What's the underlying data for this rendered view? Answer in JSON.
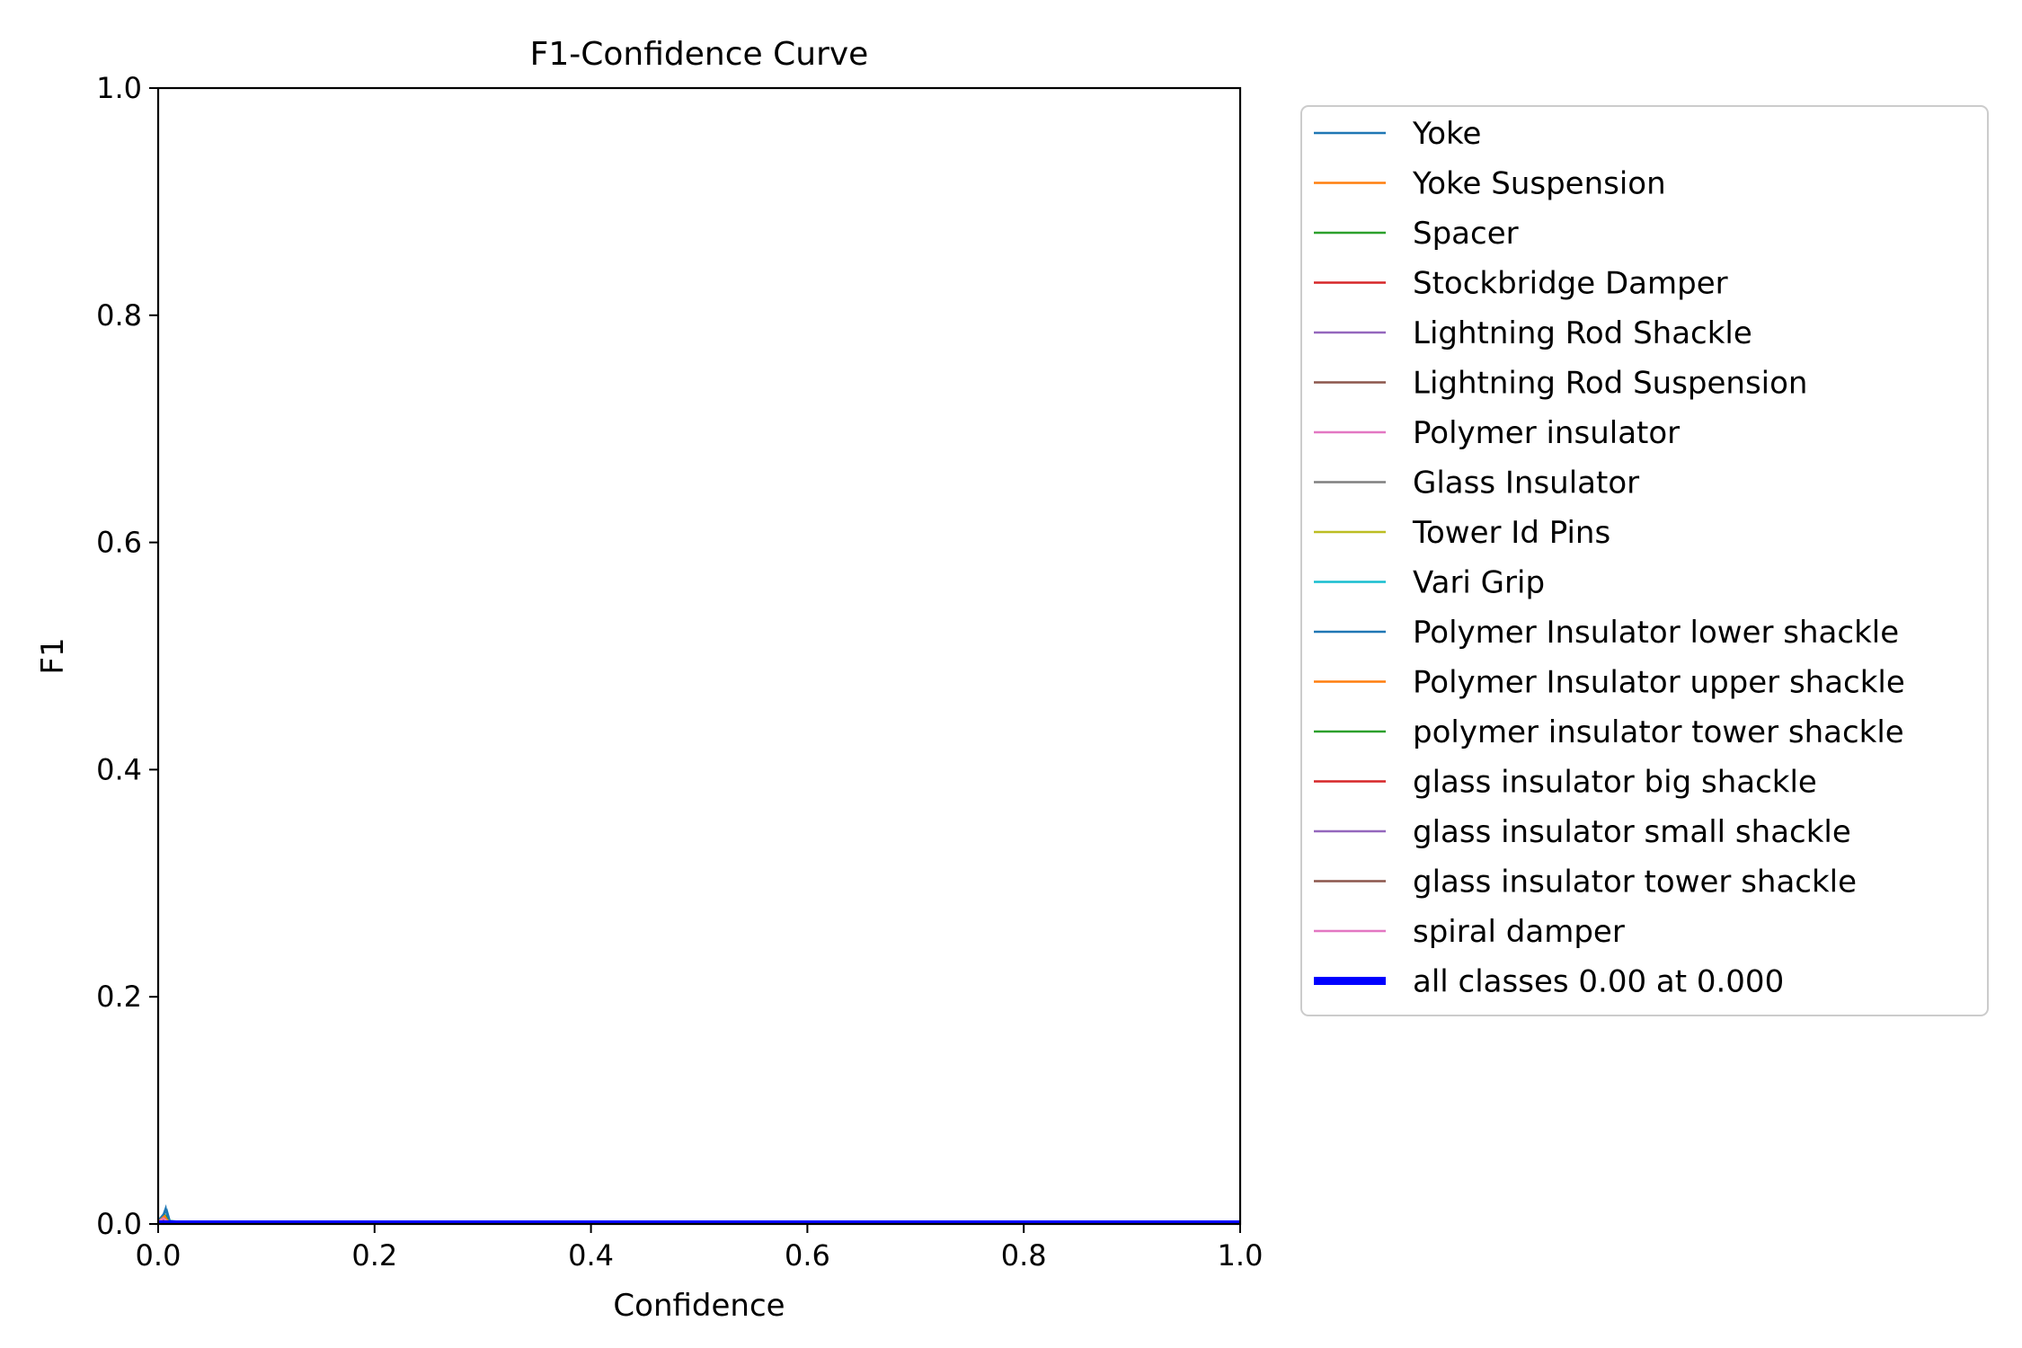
{
  "chart_data": {
    "type": "line",
    "title": "F1-Confidence Curve",
    "xlabel": "Confidence",
    "ylabel": "F1",
    "xlim": [
      0.0,
      1.0
    ],
    "ylim": [
      0.0,
      1.0
    ],
    "xticks": [
      "0.0",
      "0.2",
      "0.4",
      "0.6",
      "0.8",
      "1.0"
    ],
    "yticks": [
      "0.0",
      "0.2",
      "0.4",
      "0.6",
      "0.8",
      "1.0"
    ],
    "grid": false,
    "legend_position": "outside-right-top",
    "series": [
      {
        "name": "Yoke",
        "color": "#1f77b4",
        "points": [
          [
            0,
            0.004
          ],
          [
            0.004,
            0.006
          ],
          [
            0.007,
            0.014
          ],
          [
            0.009,
            0.003
          ],
          [
            0.02,
            0.002
          ],
          [
            1,
            0.001
          ]
        ]
      },
      {
        "name": "Yoke Suspension",
        "color": "#ff7f0e",
        "points": [
          [
            0,
            0.002
          ],
          [
            0.005,
            0.004
          ],
          [
            0.01,
            0.001
          ],
          [
            1,
            0.0
          ]
        ]
      },
      {
        "name": "Spacer",
        "color": "#2ca02c",
        "points": [
          [
            0,
            0.003
          ],
          [
            0.006,
            0.008
          ],
          [
            0.01,
            0.002
          ],
          [
            1,
            0.001
          ]
        ]
      },
      {
        "name": "Stockbridge Damper",
        "color": "#d62728",
        "points": [
          [
            0,
            0.002
          ],
          [
            0.004,
            0.004
          ],
          [
            0.01,
            0.001
          ],
          [
            1,
            0.0
          ]
        ]
      },
      {
        "name": "Lightning Rod Shackle",
        "color": "#9467bd",
        "points": [
          [
            0,
            0.001
          ],
          [
            0.01,
            0.001
          ],
          [
            1,
            0.0
          ]
        ]
      },
      {
        "name": "Lightning Rod Suspension",
        "color": "#8c564b",
        "points": [
          [
            0,
            0.001
          ],
          [
            0.01,
            0.0
          ],
          [
            1,
            0.0
          ]
        ]
      },
      {
        "name": "Polymer insulator",
        "color": "#e377c2",
        "points": [
          [
            0,
            0.003
          ],
          [
            0.005,
            0.006
          ],
          [
            0.01,
            0.002
          ],
          [
            1,
            0.001
          ]
        ]
      },
      {
        "name": "Glass Insulator",
        "color": "#7f7f7f",
        "points": [
          [
            0,
            0.002
          ],
          [
            0.006,
            0.005
          ],
          [
            0.01,
            0.001
          ],
          [
            1,
            0.0
          ]
        ]
      },
      {
        "name": "Tower Id Pins",
        "color": "#bcbd22",
        "points": [
          [
            0,
            0.001
          ],
          [
            0.01,
            0.0
          ],
          [
            1,
            0.0
          ]
        ]
      },
      {
        "name": "Vari Grip",
        "color": "#17becf",
        "points": [
          [
            0,
            0.002
          ],
          [
            0.005,
            0.004
          ],
          [
            0.01,
            0.001
          ],
          [
            1,
            0.0
          ]
        ]
      },
      {
        "name": "Polymer Insulator lower shackle",
        "color": "#1f77b4",
        "points": [
          [
            0,
            0.003
          ],
          [
            0.008,
            0.012
          ],
          [
            0.011,
            0.002
          ],
          [
            1,
            0.001
          ]
        ]
      },
      {
        "name": "Polymer Insulator upper shackle",
        "color": "#ff7f0e",
        "points": [
          [
            0,
            0.002
          ],
          [
            0.006,
            0.007
          ],
          [
            0.01,
            0.001
          ],
          [
            1,
            0.0
          ]
        ]
      },
      {
        "name": "polymer insulator tower shackle",
        "color": "#2ca02c",
        "points": [
          [
            0,
            0.001
          ],
          [
            0.01,
            0.0
          ],
          [
            1,
            0.0
          ]
        ]
      },
      {
        "name": "glass insulator big shackle",
        "color": "#d62728",
        "points": [
          [
            0,
            0.002
          ],
          [
            0.005,
            0.003
          ],
          [
            0.01,
            0.001
          ],
          [
            1,
            0.0
          ]
        ]
      },
      {
        "name": "glass insulator small shackle",
        "color": "#9467bd",
        "points": [
          [
            0,
            0.001
          ],
          [
            0.01,
            0.0
          ],
          [
            1,
            0.0
          ]
        ]
      },
      {
        "name": "glass insulator tower shackle",
        "color": "#8c564b",
        "points": [
          [
            0,
            0.001
          ],
          [
            0.01,
            0.0
          ],
          [
            1,
            0.0
          ]
        ]
      },
      {
        "name": "spiral damper",
        "color": "#e377c2",
        "points": [
          [
            0,
            0.002
          ],
          [
            0.005,
            0.005
          ],
          [
            0.01,
            0.001
          ],
          [
            1,
            0.0
          ]
        ]
      },
      {
        "name": "all classes 0.00 at 0.000",
        "color": "#0000ff",
        "bold": true,
        "points": [
          [
            0,
            0.0
          ],
          [
            1,
            0.0
          ]
        ]
      }
    ]
  }
}
